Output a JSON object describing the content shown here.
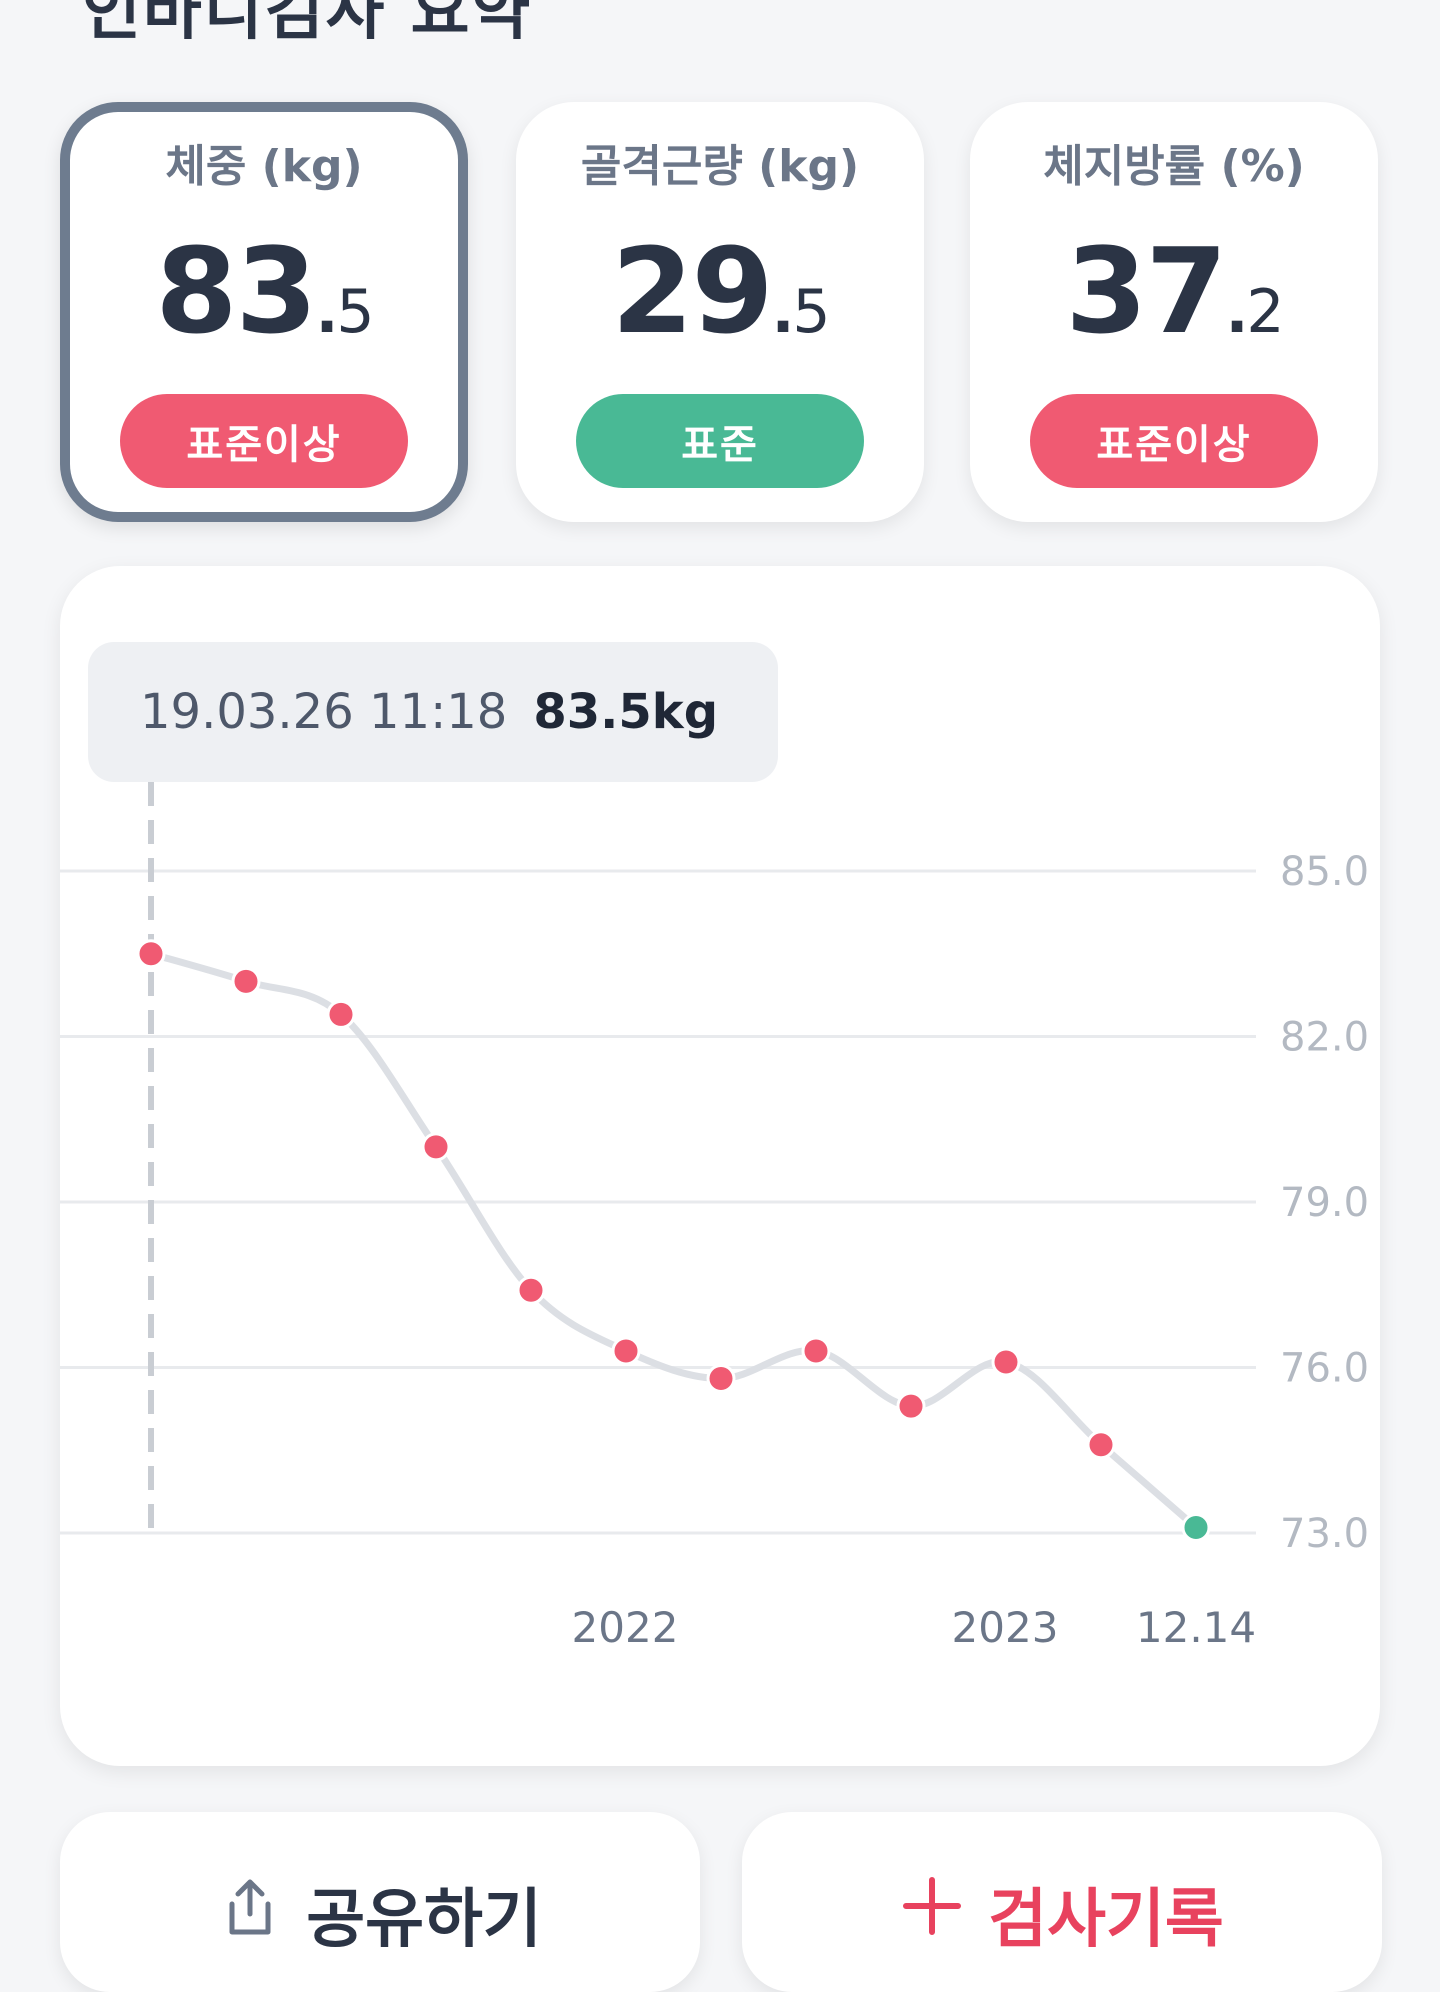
{
  "header": {
    "title": "인바디검사 요약"
  },
  "metrics": [
    {
      "label": "체중 (kg)",
      "int": "83",
      "dec": "5",
      "status": "표준이상",
      "status_color": "#f05a72",
      "selected": true
    },
    {
      "label": "골격근량 (kg)",
      "int": "29",
      "dec": "5",
      "status": "표준",
      "status_color": "#49b995",
      "selected": false
    },
    {
      "label": "체지방률 (%)",
      "int": "37",
      "dec": "2",
      "status": "표준이상",
      "status_color": "#f05a72",
      "selected": false
    }
  ],
  "tooltip": {
    "date": "19.03.26 11:18",
    "value": "83.5kg"
  },
  "chart_data": {
    "type": "line",
    "title": "",
    "xlabel": "",
    "ylabel": "",
    "ylim": [
      73.0,
      85.0
    ],
    "y_ticks": [
      "85.0",
      "82.0",
      "79.0",
      "76.0",
      "73.0"
    ],
    "x_tick_labels": [
      "2022",
      "2023",
      "12.14"
    ],
    "grid": true,
    "series": [
      {
        "values": [
          83.5,
          83.0,
          82.4,
          80.0,
          77.4,
          76.3,
          75.8,
          76.3,
          75.3,
          76.1,
          74.6,
          73.1
        ]
      }
    ],
    "highlight_index": 0,
    "colors": {
      "line": "#dcdfe4",
      "point": "#f05a72",
      "last_point": "#49b995",
      "grid": "#e8eaed",
      "tick": "#b3b9c2",
      "x_tick": "#6b7688"
    }
  },
  "actions": {
    "share": {
      "label": "공유하기",
      "icon": "share-icon",
      "color": "#2b3445"
    },
    "record": {
      "label": "검사기록",
      "icon": "plus-icon",
      "color": "#e8425e"
    }
  }
}
